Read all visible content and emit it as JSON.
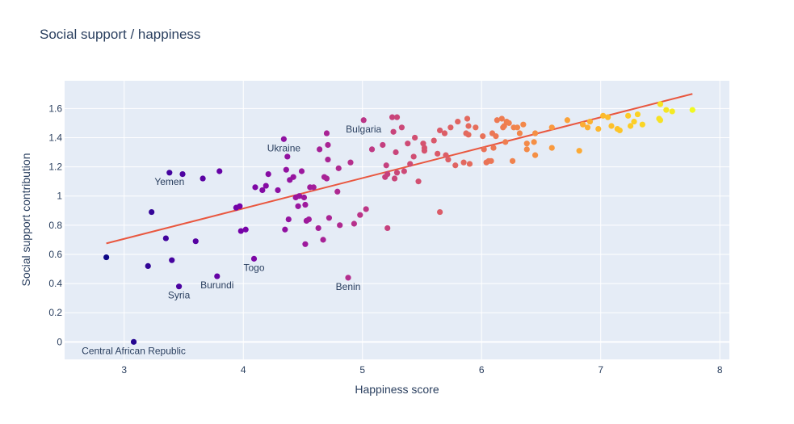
{
  "chart_data": {
    "type": "scatter",
    "title": "Social support / happiness",
    "xlabel": "Happiness score",
    "ylabel": "Social support contribution",
    "xlim": [
      2.5,
      8.08
    ],
    "ylim": [
      -0.12,
      1.79
    ],
    "x_ticks": [
      3,
      4,
      5,
      6,
      7,
      8
    ],
    "y_ticks": [
      0,
      0.2,
      0.4,
      0.6,
      0.8,
      1,
      1.2,
      1.4,
      1.6
    ],
    "y_tick_labels": [
      "0",
      "0.2",
      "0.4",
      "0.6",
      "0.8",
      "1",
      "1.2",
      "1.4",
      "1.6"
    ],
    "grid": true,
    "plot_bg": "#e5ecf6",
    "colorscale": [
      "#0d0887",
      "#46039f",
      "#7201a8",
      "#9c179e",
      "#bd3786",
      "#d8576b",
      "#ed7953",
      "#fb9f3a",
      "#fdca26",
      "#f0f921"
    ],
    "trendline": {
      "x": [
        2.85,
        7.77
      ],
      "y": [
        0.675,
        1.7
      ],
      "color": "#e9573f"
    },
    "points": [
      [
        2.85,
        0.58
      ],
      [
        3.08,
        0.0
      ],
      [
        3.2,
        0.52
      ],
      [
        3.23,
        0.89
      ],
      [
        3.35,
        0.71
      ],
      [
        3.38,
        1.16
      ],
      [
        3.4,
        0.56
      ],
      [
        3.46,
        0.38
      ],
      [
        3.49,
        1.15
      ],
      [
        3.6,
        0.69
      ],
      [
        3.66,
        1.12
      ],
      [
        3.78,
        0.45
      ],
      [
        3.8,
        1.17
      ],
      [
        3.94,
        0.92
      ],
      [
        3.97,
        0.93
      ],
      [
        3.98,
        0.76
      ],
      [
        4.02,
        0.77
      ],
      [
        4.09,
        0.57
      ],
      [
        4.1,
        1.06
      ],
      [
        4.16,
        1.04
      ],
      [
        4.19,
        1.07
      ],
      [
        4.21,
        1.15
      ],
      [
        4.29,
        1.04
      ],
      [
        4.34,
        1.39
      ],
      [
        4.35,
        0.77
      ],
      [
        4.36,
        1.18
      ],
      [
        4.37,
        1.27
      ],
      [
        4.38,
        0.84
      ],
      [
        4.39,
        1.11
      ],
      [
        4.42,
        1.13
      ],
      [
        4.44,
        0.99
      ],
      [
        4.46,
        0.93
      ],
      [
        4.47,
        1.0
      ],
      [
        4.49,
        1.17
      ],
      [
        4.51,
        0.99
      ],
      [
        4.52,
        0.94
      ],
      [
        4.52,
        0.67
      ],
      [
        4.53,
        0.83
      ],
      [
        4.55,
        0.84
      ],
      [
        4.56,
        1.06
      ],
      [
        4.59,
        1.06
      ],
      [
        4.63,
        0.78
      ],
      [
        4.64,
        1.32
      ],
      [
        4.67,
        0.7
      ],
      [
        4.68,
        1.13
      ],
      [
        4.7,
        1.43
      ],
      [
        4.7,
        1.12
      ],
      [
        4.71,
        1.25
      ],
      [
        4.71,
        1.35
      ],
      [
        4.72,
        0.85
      ],
      [
        4.79,
        1.03
      ],
      [
        4.8,
        1.19
      ],
      [
        4.81,
        0.8
      ],
      [
        4.88,
        0.44
      ],
      [
        4.9,
        1.23
      ],
      [
        4.93,
        0.81
      ],
      [
        4.98,
        0.87
      ],
      [
        5.01,
        1.52
      ],
      [
        5.03,
        0.91
      ],
      [
        5.08,
        1.32
      ],
      [
        5.17,
        1.35
      ],
      [
        5.19,
        1.13
      ],
      [
        5.2,
        1.21
      ],
      [
        5.21,
        0.78
      ],
      [
        5.21,
        1.15
      ],
      [
        5.25,
        1.54
      ],
      [
        5.26,
        1.44
      ],
      [
        5.27,
        1.12
      ],
      [
        5.28,
        1.3
      ],
      [
        5.29,
        1.16
      ],
      [
        5.29,
        1.54
      ],
      [
        5.33,
        1.47
      ],
      [
        5.35,
        1.17
      ],
      [
        5.38,
        1.36
      ],
      [
        5.4,
        1.22
      ],
      [
        5.43,
        1.27
      ],
      [
        5.44,
        1.4
      ],
      [
        5.47,
        1.1
      ],
      [
        5.51,
        1.36
      ],
      [
        5.52,
        1.31
      ],
      [
        5.52,
        1.33
      ],
      [
        5.6,
        1.38
      ],
      [
        5.63,
        1.29
      ],
      [
        5.65,
        1.45
      ],
      [
        5.65,
        0.89
      ],
      [
        5.69,
        1.43
      ],
      [
        5.7,
        1.28
      ],
      [
        5.72,
        1.25
      ],
      [
        5.74,
        1.47
      ],
      [
        5.78,
        1.21
      ],
      [
        5.8,
        1.51
      ],
      [
        5.85,
        1.23
      ],
      [
        5.87,
        1.43
      ],
      [
        5.88,
        1.53
      ],
      [
        5.89,
        1.42
      ],
      [
        5.89,
        1.48
      ],
      [
        5.9,
        1.22
      ],
      [
        5.95,
        1.47
      ],
      [
        6.01,
        1.41
      ],
      [
        6.02,
        1.32
      ],
      [
        6.04,
        1.23
      ],
      [
        6.06,
        1.24
      ],
      [
        6.08,
        1.24
      ],
      [
        6.09,
        1.43
      ],
      [
        6.1,
        1.33
      ],
      [
        6.12,
        1.41
      ],
      [
        6.13,
        1.52
      ],
      [
        6.17,
        1.53
      ],
      [
        6.18,
        1.47
      ],
      [
        6.19,
        1.48
      ],
      [
        6.2,
        1.37
      ],
      [
        6.21,
        1.51
      ],
      [
        6.23,
        1.5
      ],
      [
        6.26,
        1.24
      ],
      [
        6.27,
        1.47
      ],
      [
        6.3,
        1.47
      ],
      [
        6.32,
        1.43
      ],
      [
        6.35,
        1.49
      ],
      [
        6.38,
        1.36
      ],
      [
        6.38,
        1.32
      ],
      [
        6.44,
        1.37
      ],
      [
        6.45,
        1.28
      ],
      [
        6.45,
        1.43
      ],
      [
        6.59,
        1.47
      ],
      [
        6.59,
        1.33
      ],
      [
        6.72,
        1.52
      ],
      [
        6.82,
        1.31
      ],
      [
        6.85,
        1.49
      ],
      [
        6.89,
        1.47
      ],
      [
        6.91,
        1.51
      ],
      [
        6.98,
        1.46
      ],
      [
        7.02,
        1.55
      ],
      [
        7.06,
        1.54
      ],
      [
        7.09,
        1.48
      ],
      [
        7.14,
        1.46
      ],
      [
        7.16,
        1.45
      ],
      [
        7.23,
        1.55
      ],
      [
        7.25,
        1.48
      ],
      [
        7.28,
        1.51
      ],
      [
        7.31,
        1.56
      ],
      [
        7.35,
        1.49
      ],
      [
        7.49,
        1.53
      ],
      [
        7.5,
        1.52
      ],
      [
        7.5,
        1.63
      ],
      [
        7.55,
        1.59
      ],
      [
        7.6,
        1.58
      ],
      [
        7.77,
        1.59
      ]
    ],
    "annotations": [
      {
        "text": "Central African Republic",
        "x": 3.08,
        "y": 0.0,
        "pos": "below"
      },
      {
        "text": "Yemen",
        "x": 3.38,
        "y": 1.16,
        "pos": "below"
      },
      {
        "text": "Syria",
        "x": 3.46,
        "y": 0.38,
        "pos": "below"
      },
      {
        "text": "Burundi",
        "x": 3.78,
        "y": 0.45,
        "pos": "below"
      },
      {
        "text": "Togo",
        "x": 4.09,
        "y": 0.57,
        "pos": "below"
      },
      {
        "text": "Ukraine",
        "x": 4.34,
        "y": 1.39,
        "pos": "below"
      },
      {
        "text": "Benin",
        "x": 4.88,
        "y": 0.44,
        "pos": "below"
      },
      {
        "text": "Bulgaria",
        "x": 5.01,
        "y": 1.52,
        "pos": "below"
      }
    ]
  }
}
